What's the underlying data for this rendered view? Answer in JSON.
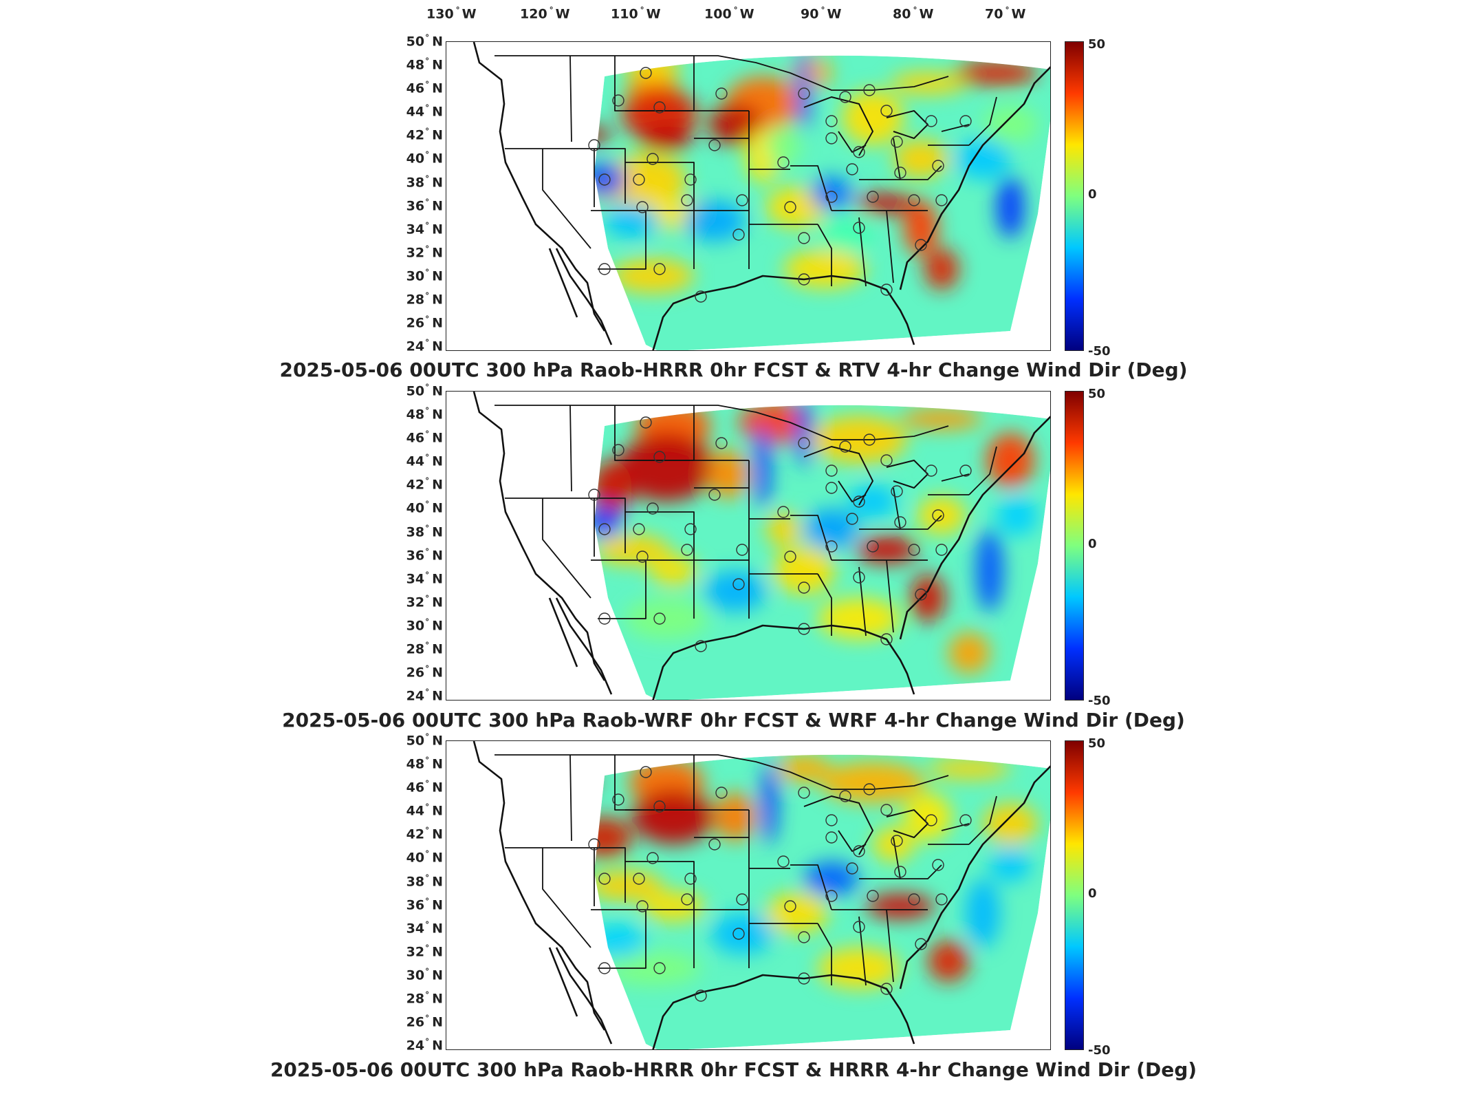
{
  "map": {
    "lon_labels": [
      "130",
      "120",
      "110",
      "100",
      "90",
      "80",
      "70"
    ],
    "lon_suffix": "W",
    "lat_labels": [
      "50",
      "48",
      "46",
      "44",
      "42",
      "40",
      "38",
      "36",
      "34",
      "32",
      "30",
      "28",
      "26",
      "24"
    ],
    "lat_suffix": "N",
    "degree_symbol": "°"
  },
  "colorbar": {
    "max_label": "50",
    "mid_label": "0",
    "min_label": "-50",
    "colors": [
      "#00007f",
      "#0030ff",
      "#00c8ff",
      "#7fff7f",
      "#ffe600",
      "#ff3a00",
      "#7f0000"
    ]
  },
  "panels": [
    {
      "title": "2025-05-06 00UTC 300 hPa Raob-HRRR 0hr FCST & RTV 4-hr Change Wind Dir (Deg)"
    },
    {
      "title": "2025-05-06 00UTC 300 hPa Raob-WRF 0hr FCST & WRF 4-hr Change Wind Dir (Deg)"
    },
    {
      "title": "2025-05-06 00UTC 300 hPa Raob-HRRR 0hr FCST & HRRR 4-hr Change Wind Dir (Deg)"
    }
  ]
}
